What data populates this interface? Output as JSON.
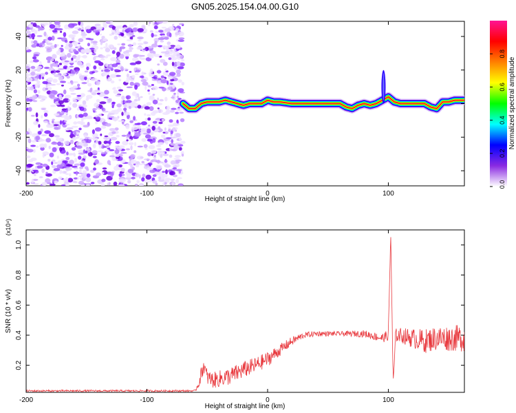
{
  "title": "GN05.2025.154.04.00.G10",
  "chart_data": [
    {
      "type": "heatmap",
      "xlabel": "Height of straight line (km)",
      "ylabel": "Frequency (Hz)",
      "xlim": [
        -200,
        163
      ],
      "ylim": [
        -49,
        49
      ],
      "xticks": [
        -200,
        -100,
        0,
        100
      ],
      "yticks": [
        -40,
        -20,
        0,
        20,
        40
      ],
      "colorbar": {
        "label": "Normalized spectral amplitude",
        "range": [
          0,
          1
        ],
        "ticks": [
          "0.0",
          "0.2",
          "0.4",
          "0.6",
          "0.8"
        ],
        "colors": [
          "#ffffff",
          "#8a2be2",
          "#0000ff",
          "#00ffff",
          "#00ff00",
          "#ffff00",
          "#ff8000",
          "#ff0000",
          "#ff1493"
        ]
      },
      "noise_region_x": [
        -200,
        -70
      ],
      "ridge": {
        "x": [
          -70,
          -65,
          -60,
          -55,
          -50,
          -45,
          -40,
          -35,
          -30,
          -25,
          -20,
          -15,
          -10,
          -5,
          0,
          5,
          10,
          20,
          30,
          40,
          50,
          60,
          65,
          70,
          75,
          80,
          85,
          90,
          95,
          100,
          105,
          110,
          120,
          130,
          135,
          140,
          145,
          150,
          155,
          163
        ],
        "y": [
          0,
          -3,
          -3,
          0,
          1,
          1,
          1,
          2,
          1,
          0,
          -1,
          0,
          0,
          0,
          2,
          1,
          1,
          0,
          0,
          0,
          0,
          0,
          -2,
          -3,
          -1,
          0,
          -1,
          0,
          2,
          4,
          1,
          0,
          0,
          0,
          -2,
          -3,
          1,
          1,
          2,
          2
        ]
      },
      "spike": {
        "x": 96,
        "y_range": [
          0,
          20
        ]
      }
    },
    {
      "type": "line",
      "xlabel": "Height of straight line (km)",
      "ylabel": "SNR (10 * v/v)",
      "y_multiplier": "(x10⁴)",
      "xlim": [
        -200,
        163
      ],
      "ylim": [
        0.02,
        1.1
      ],
      "xticks": [
        -200,
        -100,
        0,
        100
      ],
      "yticks": [
        "0.2",
        "0.4",
        "0.6",
        "0.8",
        "1.0"
      ],
      "ytick_values": [
        0.2,
        0.4,
        0.6,
        0.8,
        1.0
      ],
      "color": "#e8383d",
      "profile": {
        "x": [
          -200,
          -60,
          -57,
          -53,
          -50,
          -45,
          -40,
          -35,
          -30,
          -25,
          -20,
          -10,
          0,
          10,
          20,
          30,
          40,
          60,
          80,
          95,
          100,
          102,
          104,
          106,
          110,
          120,
          130,
          140,
          150,
          163
        ],
        "y": [
          0.03,
          0.03,
          0.08,
          0.2,
          0.12,
          0.1,
          0.11,
          0.12,
          0.13,
          0.15,
          0.17,
          0.2,
          0.24,
          0.3,
          0.36,
          0.4,
          0.41,
          0.41,
          0.41,
          0.38,
          0.4,
          1.08,
          0.06,
          0.4,
          0.4,
          0.38,
          0.36,
          0.38,
          0.38,
          0.38
        ]
      },
      "noise_amplitude": {
        "x": [
          -200,
          -60,
          -55,
          -30,
          0,
          20,
          30,
          60,
          95,
          110,
          130,
          163
        ],
        "y": [
          0.006,
          0.006,
          0.05,
          0.06,
          0.05,
          0.03,
          0.02,
          0.015,
          0.03,
          0.05,
          0.08,
          0.09
        ]
      }
    }
  ]
}
